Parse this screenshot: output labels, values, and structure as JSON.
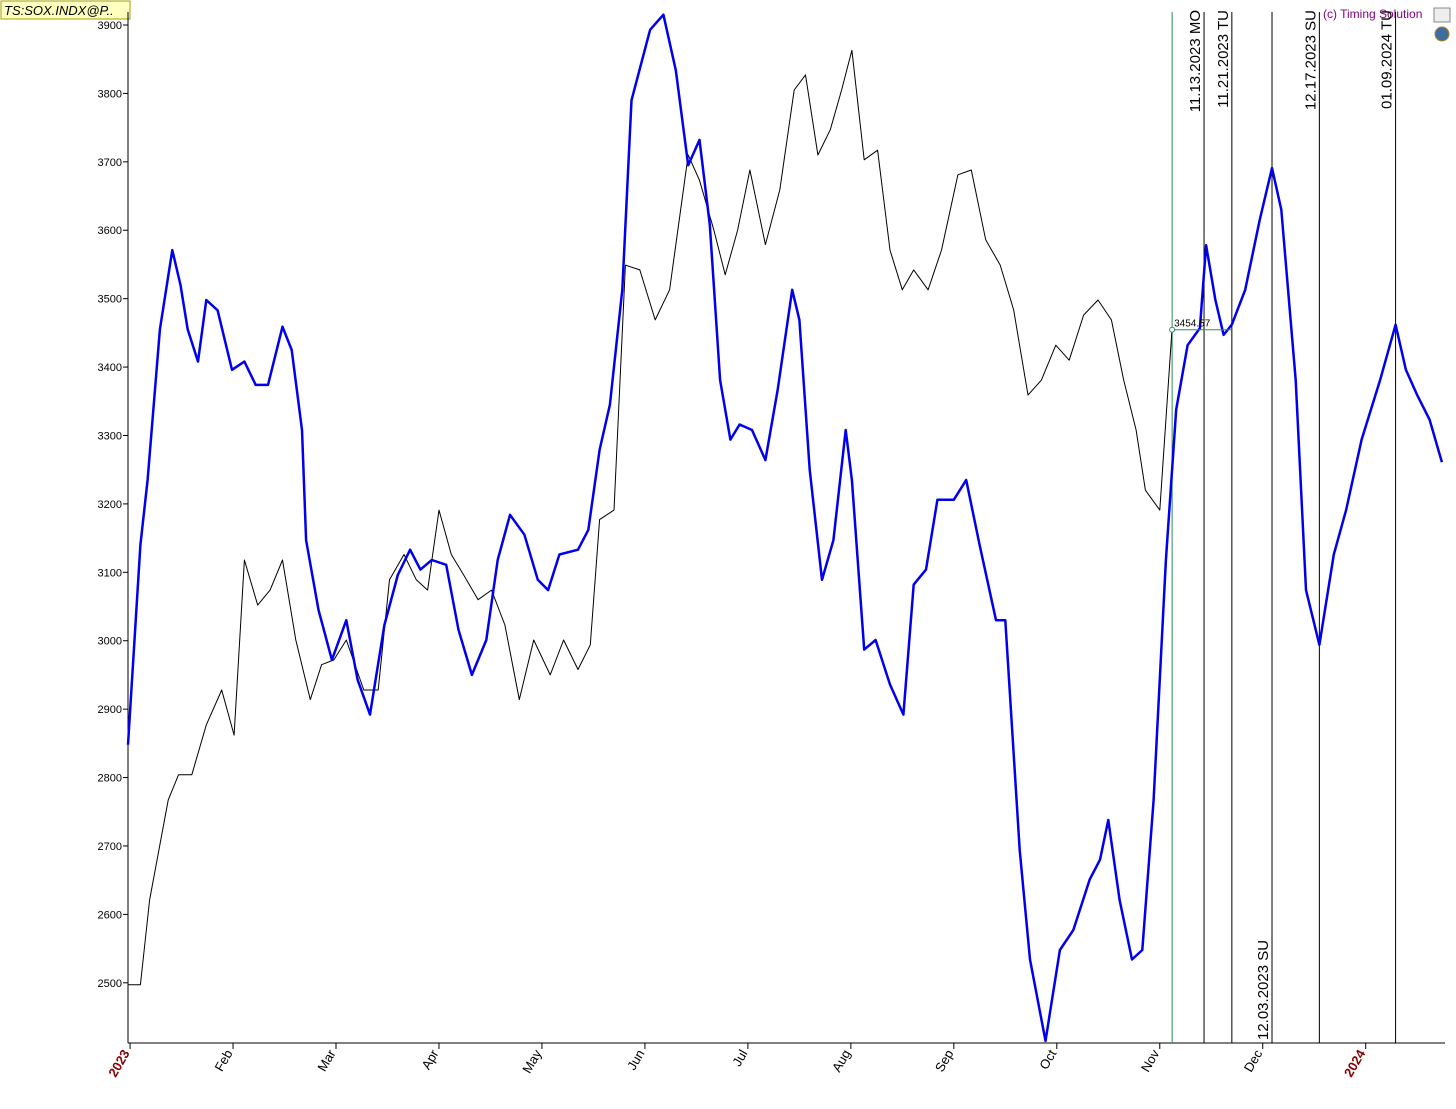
{
  "header": {
    "ticker": "TS:SOX.INDX@P..",
    "copyright": "(c) Timing Solution"
  },
  "chart_data": {
    "type": "line",
    "xlim": [
      -0.02,
      12.77
    ],
    "ylim": [
      2412,
      3919
    ],
    "yticks": [
      2500,
      2600,
      2700,
      2800,
      2900,
      3000,
      3100,
      3200,
      3300,
      3400,
      3500,
      3600,
      3700,
      3800,
      3900
    ],
    "xticks": [
      {
        "value": 0,
        "label": "2023"
      },
      {
        "value": 1,
        "label": "Feb"
      },
      {
        "value": 2,
        "label": "Mar"
      },
      {
        "value": 3,
        "label": "Apr"
      },
      {
        "value": 4,
        "label": "May"
      },
      {
        "value": 5,
        "label": "Jun"
      },
      {
        "value": 6,
        "label": "Jul"
      },
      {
        "value": 7,
        "label": "Aug"
      },
      {
        "value": 8,
        "label": "Sep"
      },
      {
        "value": 9,
        "label": "Oct"
      },
      {
        "value": 10,
        "label": "Nov"
      },
      {
        "value": 11,
        "label": "Dec"
      },
      {
        "value": 12,
        "label": "2024"
      }
    ],
    "series": [
      {
        "color": "#000000",
        "x": [
          -0.02,
          0.1,
          0.19,
          0.37,
          0.47,
          0.6,
          0.74,
          0.89,
          1.01,
          1.11,
          1.24,
          1.36,
          1.48,
          1.61,
          1.75,
          1.86,
          1.98,
          2.1,
          2.27,
          2.41,
          2.52,
          2.66,
          2.78,
          2.89,
          3.0,
          3.12,
          3.24,
          3.38,
          3.51,
          3.64,
          3.78,
          3.92,
          4.08,
          4.21,
          4.35,
          4.47,
          4.56,
          4.7,
          4.81,
          4.95,
          5.1,
          5.24,
          5.42,
          5.53,
          5.67,
          5.78,
          5.9,
          6.02,
          6.17,
          6.31,
          6.45,
          6.56,
          6.68,
          6.8,
          6.91,
          7.01,
          7.13,
          7.26,
          7.38,
          7.5,
          7.61,
          7.75,
          7.88,
          8.04,
          8.17,
          8.31,
          8.45,
          8.58,
          8.72,
          8.85,
          8.99,
          9.12,
          9.26,
          9.4,
          9.53,
          9.65,
          9.77,
          9.86,
          10.0,
          10.12
        ],
        "values": [
          2497,
          2497,
          2621,
          2767,
          2804,
          2804,
          2877,
          2928,
          2862,
          3118,
          3052,
          3074,
          3118,
          3001,
          2914,
          2965,
          2972,
          3001,
          2928,
          2928,
          3089,
          3126,
          3089,
          3074,
          3191,
          3126,
          3096,
          3060,
          3074,
          3023,
          2914,
          3001,
          2950,
          3001,
          2958,
          2994,
          3177,
          3191,
          3549,
          3542,
          3469,
          3513,
          3710,
          3673,
          3600,
          3535,
          3600,
          3688,
          3579,
          3659,
          3805,
          3827,
          3710,
          3747,
          3805,
          3863,
          3703,
          3717,
          3571,
          3513,
          3542,
          3513,
          3571,
          3681,
          3688,
          3586,
          3549,
          3484,
          3359,
          3381,
          3432,
          3410,
          3476,
          3498,
          3469,
          3381,
          3308,
          3220,
          3191,
          3457
        ]
      },
      {
        "color": "#0000ee",
        "x": [
          -0.02,
          0.1,
          0.17,
          0.29,
          0.41,
          0.49,
          0.56,
          0.66,
          0.74,
          0.85,
          0.99,
          1.11,
          1.22,
          1.34,
          1.48,
          1.57,
          1.67,
          1.71,
          1.83,
          1.96,
          2.1,
          2.21,
          2.33,
          2.47,
          2.6,
          2.72,
          2.82,
          2.93,
          3.07,
          3.19,
          3.32,
          3.46,
          3.57,
          3.69,
          3.83,
          3.96,
          4.06,
          4.17,
          4.35,
          4.45,
          4.56,
          4.66,
          4.78,
          4.87,
          5.05,
          5.18,
          5.3,
          5.42,
          5.53,
          5.63,
          5.73,
          5.83,
          5.92,
          6.04,
          6.17,
          6.29,
          6.43,
          6.5,
          6.6,
          6.72,
          6.83,
          6.95,
          7.01,
          7.13,
          7.24,
          7.38,
          7.51,
          7.61,
          7.73,
          7.84,
          8.0,
          8.12,
          8.25,
          8.41,
          8.5,
          8.64,
          8.74,
          8.89,
          9.03,
          9.16,
          9.32,
          9.42,
          9.5,
          9.61,
          9.73,
          9.83,
          9.94,
          10.06,
          10.16,
          10.27,
          10.39,
          10.45,
          10.54,
          10.62,
          10.7,
          10.83,
          10.97,
          11.09,
          11.18,
          11.32,
          11.42,
          11.55,
          11.69,
          11.81,
          11.96,
          12.14,
          12.29,
          12.39,
          12.5,
          12.62,
          12.74
        ],
        "values": [
          2848,
          3140,
          3235,
          3455,
          3571,
          3520,
          3455,
          3408,
          3498,
          3483,
          3396,
          3408,
          3374,
          3374,
          3459,
          3425,
          3308,
          3147,
          3045,
          2972,
          3030,
          2943,
          2892,
          3023,
          3096,
          3133,
          3104,
          3118,
          3111,
          3016,
          2950,
          3001,
          3118,
          3184,
          3155,
          3089,
          3074,
          3126,
          3133,
          3162,
          3279,
          3345,
          3513,
          3790,
          3893,
          3915,
          3834,
          3695,
          3732,
          3608,
          3381,
          3294,
          3316,
          3308,
          3264,
          3367,
          3513,
          3469,
          3250,
          3089,
          3147,
          3308,
          3235,
          2987,
          3001,
          2936,
          2892,
          3082,
          3104,
          3206,
          3206,
          3235,
          3140,
          3030,
          3030,
          2694,
          2534,
          2415,
          2548,
          2577,
          2651,
          2680,
          2738,
          2621,
          2534,
          2548,
          2767,
          3118,
          3338,
          3432,
          3457,
          3578,
          3498,
          3447,
          3462,
          3513,
          3615,
          3691,
          3630,
          3381,
          3074,
          2994,
          3126,
          3191,
          3294,
          3381,
          3462,
          3396,
          3359,
          3323,
          3261
        ]
      }
    ],
    "last_price": {
      "x": 10.12,
      "value": 3454.57
    },
    "vlines": [
      {
        "x": 10.12,
        "color": "#2e8b57"
      },
      {
        "x": 10.43,
        "color": "#000000",
        "label": "11.13.2023 MO",
        "position": "top"
      },
      {
        "x": 10.7,
        "color": "#000000",
        "label": "11.21.2023 TU",
        "position": "top"
      },
      {
        "x": 11.09,
        "color": "#000000",
        "label": "12.03.2023 SU",
        "position": "bottom"
      },
      {
        "x": 11.55,
        "color": "#000000",
        "label": "12.17.2023 SU",
        "position": "top"
      },
      {
        "x": 12.29,
        "color": "#000000",
        "label": "01.09.2024 TU",
        "position": "top"
      }
    ]
  }
}
